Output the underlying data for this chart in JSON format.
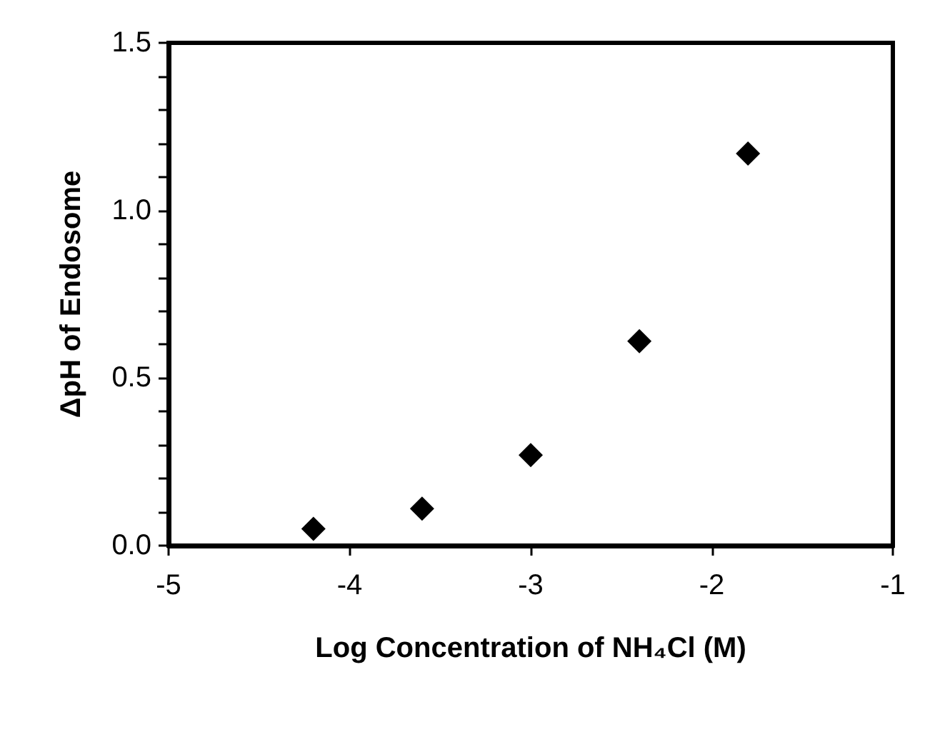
{
  "chart_data": {
    "type": "scatter",
    "xlabel": "Log Concentration of NH₄Cl (M)",
    "ylabel": "ΔpH of Endosome",
    "x": [
      -4.2,
      -3.6,
      -3.0,
      -2.4,
      -1.8
    ],
    "series": [
      {
        "color": "#000000",
        "values": [
          0.05,
          0.11,
          0.27,
          0.61,
          1.17
        ]
      }
    ],
    "marker": "diamond",
    "grid": false,
    "xlim": [
      -5,
      -1
    ],
    "xticks": [
      -5,
      -4,
      -3,
      -2,
      -1
    ],
    "ylim": [
      0,
      1.5
    ],
    "yticks": [
      {
        "value": 0,
        "label": "0.0"
      },
      {
        "value": 0.1,
        "label": null
      },
      {
        "value": 0.2,
        "label": null
      },
      {
        "value": 0.3,
        "label": null
      },
      {
        "value": 0.4,
        "label": null
      },
      {
        "value": 0.5,
        "label": "0.5"
      },
      {
        "value": 0.6,
        "label": null
      },
      {
        "value": 0.7,
        "label": null
      },
      {
        "value": 0.8,
        "label": null
      },
      {
        "value": 0.9,
        "label": null
      },
      {
        "value": 1.0,
        "label": "1.0"
      },
      {
        "value": 1.1,
        "label": null
      },
      {
        "value": 1.2,
        "label": null
      },
      {
        "value": 1.3,
        "label": null
      },
      {
        "value": 1.4,
        "label": null
      },
      {
        "value": 1.5,
        "label": "1.5"
      }
    ]
  }
}
